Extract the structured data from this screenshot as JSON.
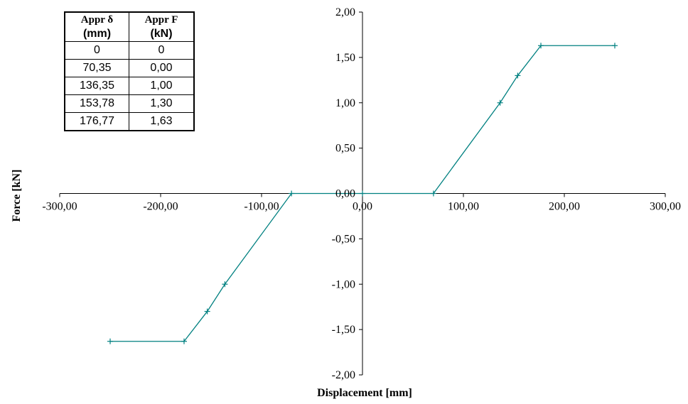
{
  "chart_data": {
    "type": "line",
    "xlabel": "Displacement [mm]",
    "ylabel": "Force [kN]",
    "xlim": [
      -300,
      300
    ],
    "ylim": [
      -2,
      2
    ],
    "x_ticks": [
      -300,
      -200,
      -100,
      0,
      100,
      200,
      300
    ],
    "y_ticks": [
      -2,
      -1.5,
      -1,
      -0.5,
      0,
      0.5,
      1,
      1.5,
      2
    ],
    "x_tick_labels": [
      "-300,00",
      "-200,00",
      "-100,00",
      "0,00",
      "100,00",
      "200,00",
      "300,00"
    ],
    "y_tick_labels": [
      "-2,00",
      "-1,50",
      "-1,00",
      "-0,50",
      "0,00",
      "0,50",
      "1,00",
      "1,50",
      "2,00"
    ],
    "series": [
      {
        "color": "#008080",
        "marker": "plus",
        "points": [
          [
            -250,
            -1.63
          ],
          [
            -176.77,
            -1.63
          ],
          [
            -153.78,
            -1.3
          ],
          [
            -136.35,
            -1.0
          ],
          [
            -70.35,
            0.0
          ],
          [
            0,
            0.0
          ],
          [
            70.35,
            0.0
          ],
          [
            136.35,
            1.0
          ],
          [
            153.78,
            1.3
          ],
          [
            176.77,
            1.63
          ],
          [
            250,
            1.63
          ]
        ]
      }
    ],
    "grid": false,
    "legend": "none"
  },
  "table": {
    "headers": [
      {
        "name": "Appr δ",
        "unit": "(mm)"
      },
      {
        "name": "Appr F",
        "unit": "(kN)"
      }
    ],
    "rows": [
      [
        "0",
        "0"
      ],
      [
        "70,35",
        "0,00"
      ],
      [
        "136,35",
        "1,00"
      ],
      [
        "153,78",
        "1,30"
      ],
      [
        "176,77",
        "1,63"
      ]
    ]
  }
}
